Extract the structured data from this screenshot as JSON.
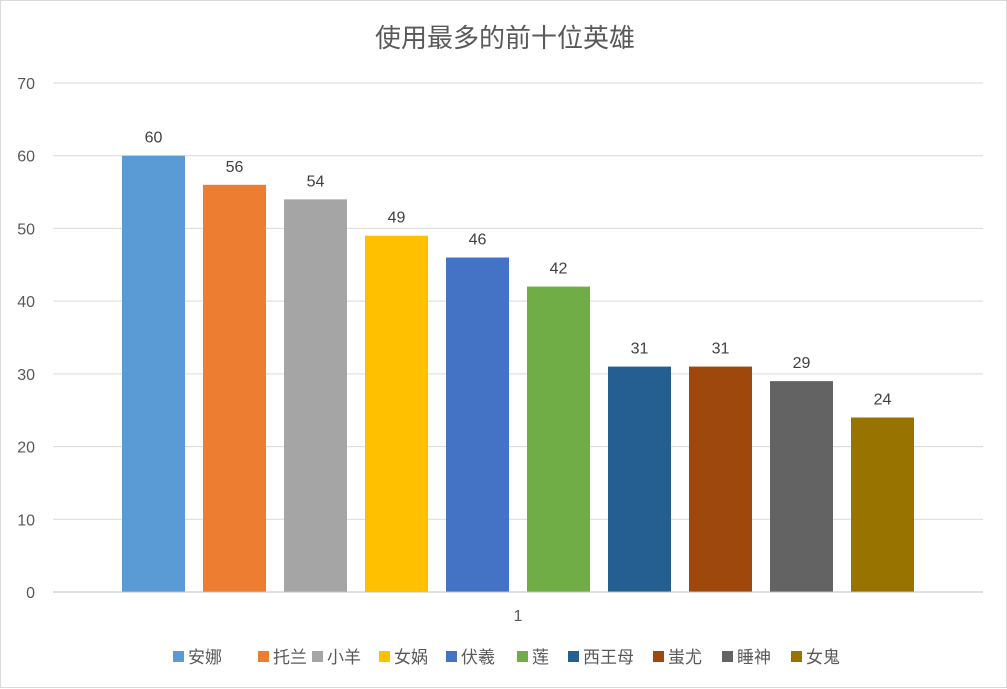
{
  "chart_data": {
    "type": "bar",
    "title": "使用最多的前十位英雄",
    "categories": [
      "1"
    ],
    "series": [
      {
        "name": "安娜",
        "values": [
          60
        ],
        "color": "#5b9bd5"
      },
      {
        "name": "托兰",
        "values": [
          56
        ],
        "color": "#ed7d31"
      },
      {
        "name": "小羊",
        "values": [
          54
        ],
        "color": "#a5a5a5"
      },
      {
        "name": "女娲",
        "values": [
          49
        ],
        "color": "#ffc000"
      },
      {
        "name": "伏羲",
        "values": [
          46
        ],
        "color": "#4472c4"
      },
      {
        "name": "莲",
        "values": [
          42
        ],
        "color": "#70ad47"
      },
      {
        "name": "西王母",
        "values": [
          31
        ],
        "color": "#255e91"
      },
      {
        "name": "蚩尤",
        "values": [
          31
        ],
        "color": "#9e480e"
      },
      {
        "name": "睡神",
        "values": [
          29
        ],
        "color": "#636363"
      },
      {
        "name": "女鬼",
        "values": [
          24
        ],
        "color": "#997300"
      }
    ],
    "ylim": [
      0,
      70
    ],
    "yticks": [
      0,
      10,
      20,
      30,
      40,
      50,
      60,
      70
    ],
    "grid": true,
    "data_labels": true,
    "legend_position": "bottom"
  }
}
